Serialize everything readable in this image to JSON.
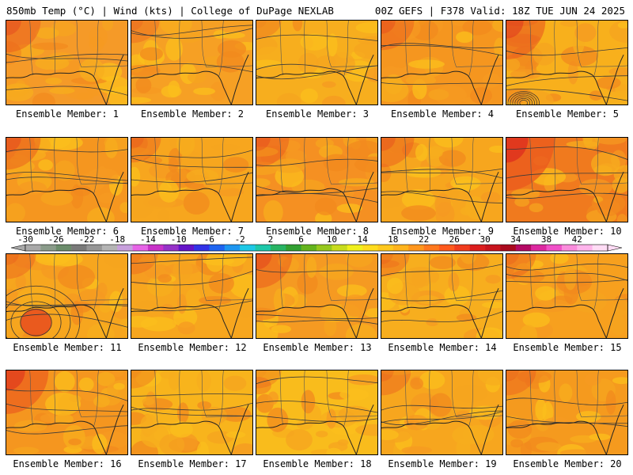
{
  "header": {
    "left": "850mb Temp (°C) | Wind (kts) | College of DuPage NEXLAB",
    "right": "00Z GEFS | F378 Valid: 18Z TUE JUN 24 2025"
  },
  "colorbar": {
    "ticks": [
      "-30",
      "-26",
      "-22",
      "-18",
      "-14",
      "-10",
      "-6",
      "-2",
      "2",
      "6",
      "10",
      "14",
      "18",
      "22",
      "26",
      "30",
      "34",
      "38",
      "42"
    ],
    "colors": [
      "#a9a9a9",
      "#8a9b8a",
      "#6b8c6b",
      "#7a7a7a",
      "#969696",
      "#b4b4b4",
      "#c8a0dc",
      "#e664e6",
      "#c832c8",
      "#9632c8",
      "#6414c8",
      "#3232e6",
      "#1e64f0",
      "#1e96f0",
      "#1ec8e6",
      "#1ec8aa",
      "#28b464",
      "#32a032",
      "#64b41e",
      "#96c81e",
      "#c8dc1e",
      "#f0f01e",
      "#ffdc1e",
      "#ffc81e",
      "#ffb41e",
      "#ff961e",
      "#ff781e",
      "#ff5a1e",
      "#f03c1e",
      "#dc1e1e",
      "#c8141e",
      "#aa0a1e",
      "#b40a64",
      "#dc28a0",
      "#f050c8",
      "#fa8cdc",
      "#ffb4eb",
      "#ffdcf5"
    ]
  },
  "panels": [
    {
      "label": "Ensemble Member: 1"
    },
    {
      "label": "Ensemble Member: 2"
    },
    {
      "label": "Ensemble Member: 3"
    },
    {
      "label": "Ensemble Member: 4"
    },
    {
      "label": "Ensemble Member: 5"
    },
    {
      "label": "Ensemble Member: 6"
    },
    {
      "label": "Ensemble Member: 7"
    },
    {
      "label": "Ensemble Member: 8"
    },
    {
      "label": "Ensemble Member: 9"
    },
    {
      "label": "Ensemble Member: 10"
    },
    {
      "label": "Ensemble Member: 11"
    },
    {
      "label": "Ensemble Member: 12"
    },
    {
      "label": "Ensemble Member: 13"
    },
    {
      "label": "Ensemble Member: 14"
    },
    {
      "label": "Ensemble Member: 15"
    },
    {
      "label": "Ensemble Member: 16"
    },
    {
      "label": "Ensemble Member: 17"
    },
    {
      "label": "Ensemble Member: 18"
    },
    {
      "label": "Ensemble Member: 19"
    },
    {
      "label": "Ensemble Member: 20"
    }
  ]
}
